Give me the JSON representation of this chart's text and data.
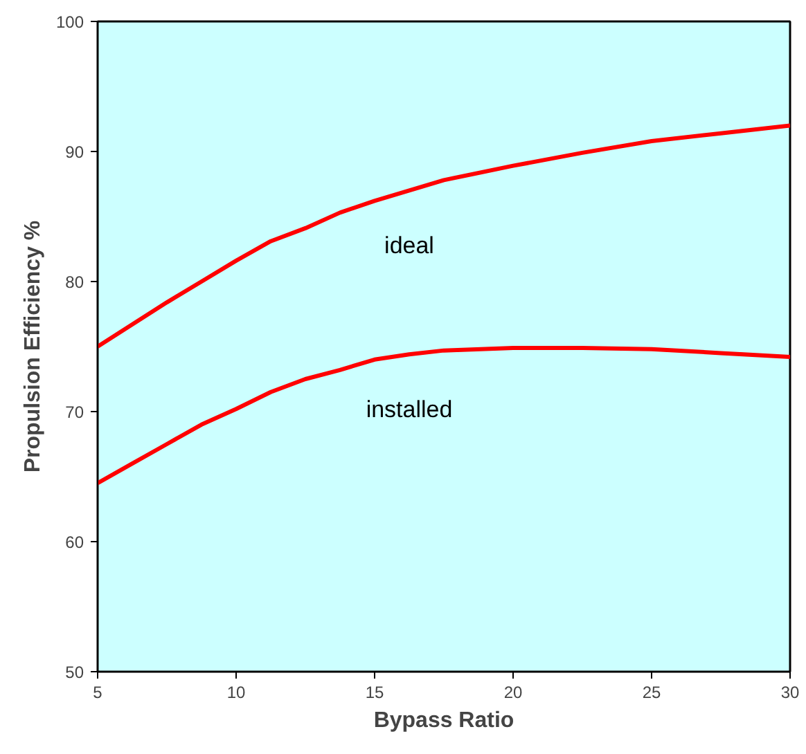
{
  "chart_data": {
    "type": "line",
    "xlabel": "Bypass Ratio",
    "ylabel": "Propulsion Efficiency %",
    "xlim": [
      5,
      30
    ],
    "ylim": [
      50,
      100
    ],
    "xticks": [
      5,
      10,
      15,
      20,
      25,
      30
    ],
    "yticks": [
      50,
      60,
      70,
      80,
      90,
      100
    ],
    "grid": false,
    "marker": "none",
    "line_style": "solid",
    "series": [
      {
        "name": "ideal",
        "color": "#ff0000",
        "x": [
          5,
          6.25,
          7.5,
          8.75,
          10,
          11.25,
          12.5,
          13.75,
          15,
          16.25,
          17.5,
          20,
          22.5,
          25,
          27.5,
          30
        ],
        "values": [
          75,
          76.7,
          78.4,
          80,
          81.6,
          83.1,
          84.1,
          85.3,
          86.2,
          87,
          87.8,
          88.9,
          89.9,
          90.8,
          91.4,
          92
        ]
      },
      {
        "name": "installed",
        "color": "#ff0000",
        "x": [
          5,
          6.25,
          7.5,
          8.75,
          10,
          11.25,
          12.5,
          13.75,
          15,
          16.25,
          17.5,
          20,
          22.5,
          25,
          27.5,
          30
        ],
        "values": [
          64.5,
          66,
          67.5,
          69,
          70.2,
          71.5,
          72.5,
          73.2,
          74,
          74.4,
          74.7,
          74.9,
          74.9,
          74.8,
          74.5,
          74.2
        ]
      }
    ]
  }
}
